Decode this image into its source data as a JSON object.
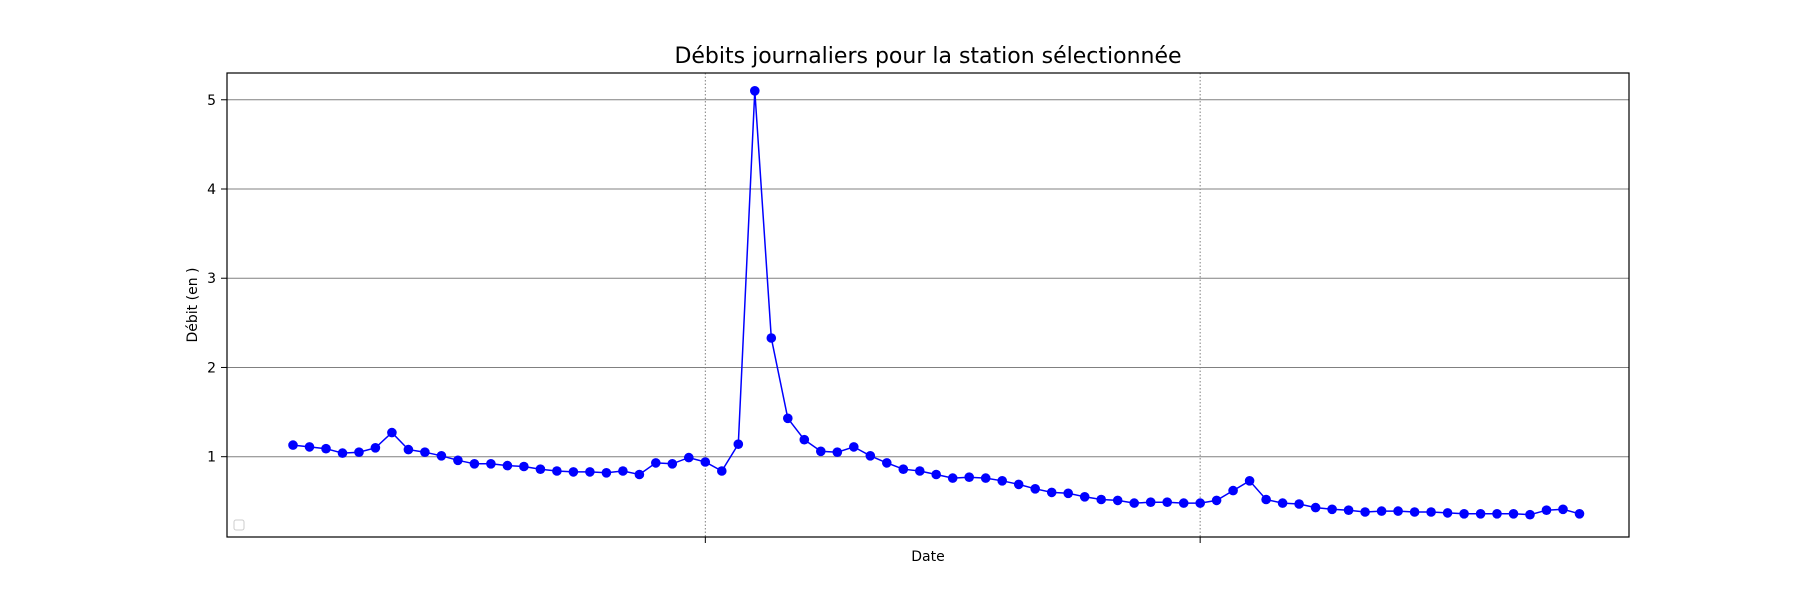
{
  "chart_data": {
    "type": "line",
    "title": "Débits journaliers pour la station sélectionnée",
    "xlabel": "Date",
    "ylabel": "Débit (en )",
    "y_ticks": [
      1,
      2,
      3,
      4,
      5
    ],
    "ylim": [
      0.1,
      5.3
    ],
    "xlim": [
      -4,
      81
    ],
    "x_gridlines_at_index": [
      25,
      55
    ],
    "grid": {
      "y": "solid",
      "x": "dotted"
    },
    "legend": {
      "placement": "lower-left",
      "entries": []
    },
    "series": [
      {
        "color": "#0000ff",
        "marker": "circle",
        "values": [
          1.13,
          1.11,
          1.09,
          1.04,
          1.05,
          1.1,
          1.27,
          1.08,
          1.05,
          1.01,
          0.96,
          0.92,
          0.92,
          0.9,
          0.89,
          0.86,
          0.84,
          0.83,
          0.83,
          0.82,
          0.84,
          0.8,
          0.93,
          0.92,
          0.99,
          0.94,
          0.84,
          1.14,
          5.1,
          2.33,
          1.43,
          1.19,
          1.06,
          1.05,
          1.11,
          1.01,
          0.93,
          0.86,
          0.84,
          0.8,
          0.76,
          0.77,
          0.76,
          0.73,
          0.69,
          0.64,
          0.6,
          0.59,
          0.55,
          0.52,
          0.51,
          0.48,
          0.49,
          0.49,
          0.48,
          0.48,
          0.51,
          0.62,
          0.73,
          0.52,
          0.48,
          0.47,
          0.43,
          0.41,
          0.4,
          0.38,
          0.39,
          0.39,
          0.38,
          0.38,
          0.37,
          0.36,
          0.36,
          0.36,
          0.36,
          0.35,
          0.4,
          0.41,
          0.36
        ]
      }
    ]
  }
}
